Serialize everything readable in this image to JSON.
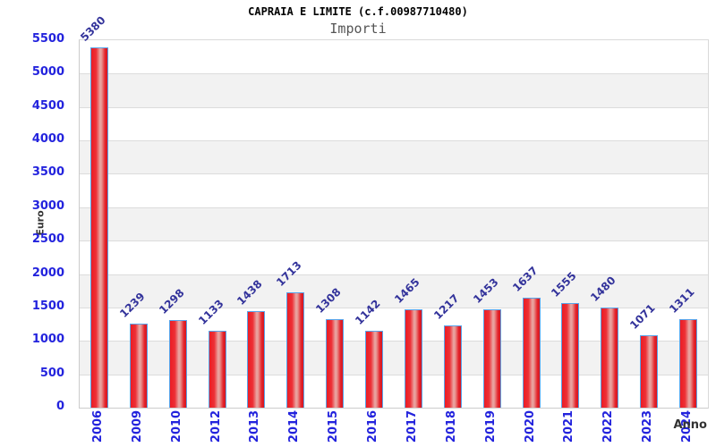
{
  "chart_data": {
    "type": "bar",
    "title": "CAPRAIA E LIMITE (c.f.00987710480)",
    "subtitle": "Importi",
    "ylabel": "Euro",
    "xlabel": "Anno",
    "categories": [
      "2006",
      "2009",
      "2010",
      "2012",
      "2013",
      "2014",
      "2015",
      "2016",
      "2017",
      "2018",
      "2019",
      "2020",
      "2021",
      "2022",
      "2023",
      "2024"
    ],
    "values": [
      5380,
      1239,
      1298,
      1133,
      1438,
      1713,
      1308,
      1142,
      1465,
      1217,
      1453,
      1637,
      1555,
      1480,
      1071,
      1311
    ],
    "ylim": [
      0,
      5500
    ],
    "ytick_step": 500,
    "grid": true,
    "legend_position": "none",
    "colors": {
      "bar_fill": "#ec1c24",
      "bar_highlight": "#e9a9a5",
      "bar_border": "#58a4ea",
      "tick_label": "#2323dd",
      "value_label": "#33339b",
      "band_gray": "#f2f2f2",
      "gridline": "#dcdcdc",
      "axis_title": "#333333",
      "title": "#000000",
      "subtitle": "#555555"
    }
  }
}
